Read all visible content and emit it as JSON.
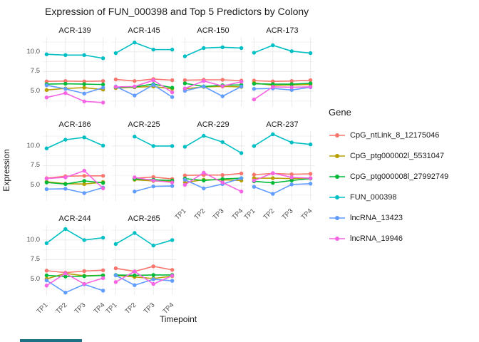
{
  "title": "Expression of FUN_000398 and Top 5 Predictors by Colony",
  "axes": {
    "x_label": "Timepoint",
    "y_label": "Expression",
    "x_ticks": [
      "TP1",
      "TP2",
      "TP3",
      "TP4"
    ],
    "y_ticks": [
      {
        "label": "10.0",
        "value": 10.0
      },
      {
        "label": "7.5",
        "value": 7.5
      },
      {
        "label": "5.0",
        "value": 5.0
      }
    ]
  },
  "legend": {
    "title": "Gene",
    "items": [
      {
        "label": "CpG_ntLink_8_12175046",
        "color": "#F8766D"
      },
      {
        "label": "CpG_ptg000002l_5531047",
        "color": "#B79F00"
      },
      {
        "label": "CpG_ptg000008l_27992749",
        "color": "#00BA38"
      },
      {
        "label": "FUN_000398",
        "color": "#00BFC4"
      },
      {
        "label": "lncRNA_13423",
        "color": "#619CFF"
      },
      {
        "label": "lncRNA_19946",
        "color": "#F564E3"
      }
    ]
  },
  "chart_data": {
    "type": "line",
    "facet_by": "Colony",
    "x": [
      "TP1",
      "TP2",
      "TP3",
      "TP4"
    ],
    "ylim": [
      3.0,
      11.9
    ],
    "y_major_gridlines": [
      5.0,
      7.5,
      10.0
    ],
    "y_minor_gridlines": [
      3.75,
      6.25,
      8.75,
      11.25
    ],
    "grid": "on",
    "legend_position": "right",
    "series_names": [
      "CpG_ntLink_8_12175046",
      "CpG_ptg000002l_5531047",
      "CpG_ptg000008l_27992749",
      "FUN_000398",
      "lncRNA_13423",
      "lncRNA_19946"
    ],
    "series_colors": [
      "#F8766D",
      "#B79F00",
      "#00BA38",
      "#00BFC4",
      "#619CFF",
      "#F564E3"
    ],
    "facets": [
      {
        "colony": "ACR-139",
        "show_y_ticks": true,
        "show_x_ticks": false,
        "series_values": [
          [
            6.25,
            6.3,
            6.25,
            6.3
          ],
          [
            5.15,
            5.35,
            5.45,
            5.2
          ],
          [
            5.9,
            5.95,
            5.9,
            5.85
          ],
          [
            9.7,
            9.6,
            9.6,
            9.2
          ],
          [
            5.75,
            5.3,
            4.7,
            5.45
          ],
          [
            4.2,
            4.75,
            3.7,
            3.55
          ]
        ]
      },
      {
        "colony": "ACR-145",
        "show_y_ticks": false,
        "show_x_ticks": false,
        "series_values": [
          [
            6.5,
            6.3,
            6.55,
            6.4
          ],
          [
            5.4,
            5.5,
            5.6,
            5.3
          ],
          [
            5.5,
            5.55,
            5.9,
            5.45
          ],
          [
            9.85,
            11.2,
            10.3,
            10.3
          ],
          [
            5.6,
            4.45,
            5.8,
            4.25
          ],
          [
            5.55,
            5.6,
            6.4,
            4.85
          ]
        ]
      },
      {
        "colony": "ACR-150",
        "show_y_ticks": false,
        "show_x_ticks": false,
        "series_values": [
          [
            6.4,
            6.45,
            6.45,
            6.35
          ],
          [
            5.3,
            5.55,
            5.6,
            5.55
          ],
          [
            6.0,
            5.6,
            5.75,
            5.8
          ],
          [
            9.45,
            10.5,
            10.6,
            10.5
          ],
          [
            5.05,
            5.6,
            4.35,
            5.6
          ],
          [
            5.35,
            6.3,
            5.65,
            6.2
          ]
        ]
      },
      {
        "colony": "ACR-173",
        "show_y_ticks": false,
        "show_x_ticks": false,
        "series_values": [
          [
            6.35,
            6.25,
            6.3,
            6.4
          ],
          [
            6.05,
            5.75,
            5.8,
            5.85
          ],
          [
            5.95,
            5.9,
            5.9,
            6.0
          ],
          [
            9.9,
            10.85,
            10.1,
            9.85
          ],
          [
            5.3,
            5.35,
            5.15,
            5.5
          ],
          [
            3.95,
            5.55,
            5.5,
            5.55
          ]
        ]
      },
      {
        "colony": "ACR-186",
        "show_y_ticks": true,
        "show_x_ticks": false,
        "series_values": [
          [
            5.9,
            6.15,
            6.2,
            6.2
          ],
          [
            5.45,
            5.2,
            5.15,
            5.4
          ],
          [
            5.35,
            5.15,
            5.55,
            5.3
          ],
          [
            9.7,
            10.8,
            11.1,
            10.05
          ],
          [
            4.5,
            4.55,
            4.0,
            4.7
          ],
          [
            5.85,
            6.0,
            6.85,
            4.6
          ]
        ]
      },
      {
        "colony": "ACR-225",
        "show_y_ticks": false,
        "show_x_ticks": false,
        "series_values": [
          [
            null,
            5.9,
            6.05,
            5.8
          ],
          [
            null,
            5.7,
            5.55,
            5.5
          ],
          [
            null,
            5.8,
            5.7,
            5.6
          ],
          [
            null,
            11.2,
            10.0,
            10.0
          ],
          [
            null,
            4.2,
            4.85,
            4.9
          ],
          [
            null,
            6.0,
            5.6,
            5.35
          ]
        ]
      },
      {
        "colony": "ACR-229",
        "show_y_ticks": false,
        "show_x_ticks": true,
        "series_values": [
          [
            6.25,
            6.3,
            6.3,
            6.5
          ],
          [
            5.35,
            5.7,
            5.7,
            5.6
          ],
          [
            5.85,
            5.6,
            5.8,
            5.9
          ],
          [
            9.9,
            11.3,
            10.5,
            9.1
          ],
          [
            5.7,
            4.6,
            5.15,
            5.9
          ],
          [
            5.05,
            6.6,
            5.35,
            4.2
          ]
        ]
      },
      {
        "colony": "ACR-237",
        "show_y_ticks": false,
        "show_x_ticks": true,
        "series_values": [
          [
            6.35,
            6.5,
            6.4,
            6.45
          ],
          [
            5.9,
            5.9,
            5.85,
            5.9
          ],
          [
            5.5,
            5.3,
            5.6,
            5.85
          ],
          [
            10.0,
            11.5,
            10.45,
            10.2
          ],
          [
            4.8,
            3.9,
            5.1,
            5.2
          ],
          [
            5.6,
            6.55,
            6.0,
            5.9
          ]
        ]
      },
      {
        "colony": "ACR-244",
        "show_y_ticks": true,
        "show_x_ticks": true,
        "series_values": [
          [
            6.1,
            5.85,
            6.05,
            6.15
          ],
          [
            5.05,
            5.75,
            5.45,
            5.5
          ],
          [
            5.5,
            5.35,
            5.4,
            5.5
          ],
          [
            9.6,
            11.4,
            10.0,
            10.3
          ],
          [
            4.85,
            3.3,
            4.35,
            3.55
          ],
          [
            4.2,
            5.75,
            4.4,
            5.15
          ]
        ]
      },
      {
        "colony": "ACR-265",
        "show_y_ticks": false,
        "show_x_ticks": true,
        "series_values": [
          [
            6.4,
            6.0,
            6.65,
            6.2
          ],
          [
            5.5,
            5.3,
            5.1,
            5.4
          ],
          [
            5.55,
            5.5,
            5.55,
            5.55
          ],
          [
            9.5,
            10.9,
            9.3,
            10.0
          ],
          [
            5.5,
            4.25,
            5.0,
            4.8
          ],
          [
            4.65,
            6.0,
            4.4,
            5.45
          ]
        ]
      }
    ]
  },
  "colors": {
    "major_grid": "#ebebeb",
    "minor_grid": "#f2f2f2",
    "artifact_bar": "#1d7285"
  }
}
